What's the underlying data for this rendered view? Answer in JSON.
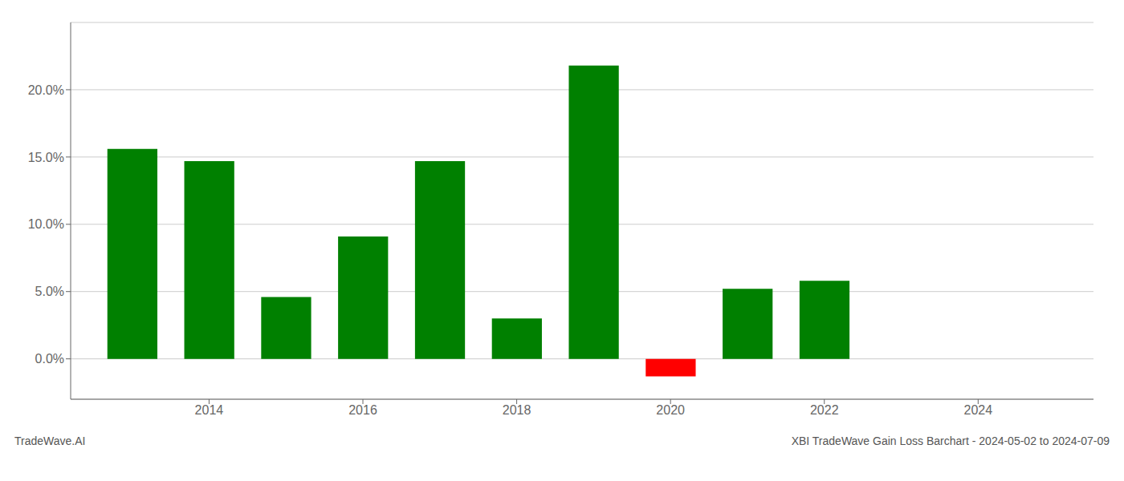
{
  "chart_data": {
    "type": "bar",
    "title": "XBI TradeWave Gain Loss Barchart - 2024-05-02 to 2024-07-09",
    "annotations": [
      "TradeWave.AI"
    ],
    "x": [
      2013,
      2014,
      2015,
      2016,
      2017,
      2018,
      2019,
      2020,
      2021,
      2022
    ],
    "values": [
      0.156,
      0.147,
      0.046,
      0.091,
      0.147,
      0.03,
      0.218,
      -0.013,
      0.052,
      0.058
    ],
    "colors": [
      "#008000",
      "#008000",
      "#008000",
      "#008000",
      "#008000",
      "#008000",
      "#008000",
      "#ff0000",
      "#008000",
      "#008000"
    ],
    "xlim": [
      2012.2,
      2025.5
    ],
    "xticks": [
      2014,
      2016,
      2018,
      2020,
      2022,
      2024
    ],
    "ylim": [
      -0.03,
      0.25
    ],
    "yticks": [
      {
        "value": 0.0,
        "label": "0.0%"
      },
      {
        "value": 0.05,
        "label": "5.0%"
      },
      {
        "value": 0.1,
        "label": "10.0%"
      },
      {
        "value": 0.15,
        "label": "15.0%"
      },
      {
        "value": 0.2,
        "label": "20.0%"
      }
    ],
    "grid": "y"
  }
}
